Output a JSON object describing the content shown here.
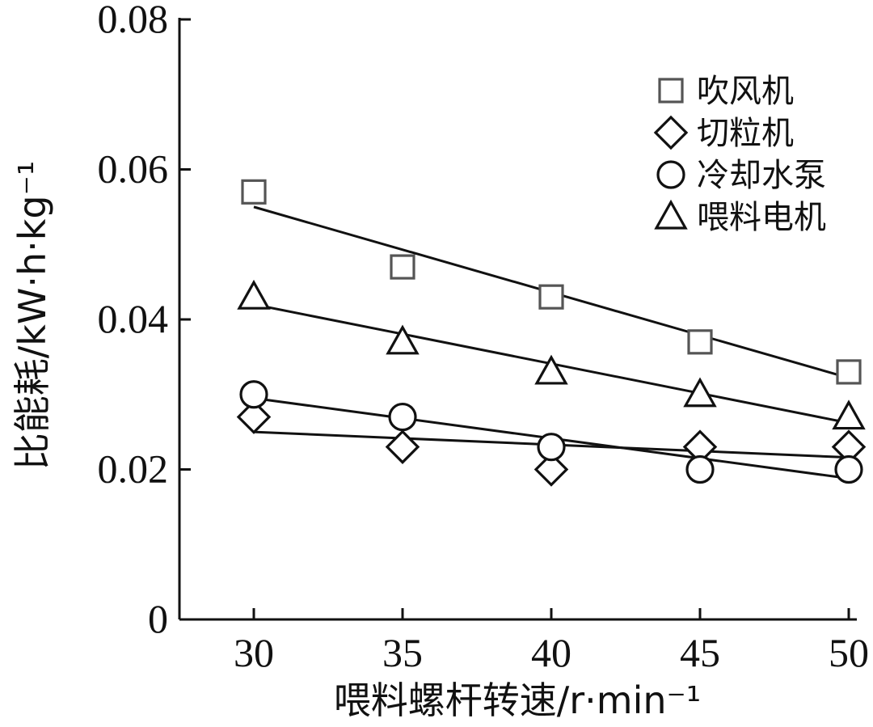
{
  "chart_data": {
    "type": "scatter",
    "xlabel": "喂料螺杆转速/r·min⁻¹",
    "ylabel": "比能耗/kW·h·kg⁻¹",
    "x": [
      30,
      35,
      40,
      45,
      50
    ],
    "xticks": [
      "30",
      "35",
      "40",
      "45",
      "50"
    ],
    "yticks": [
      "0",
      "0.02",
      "0.04",
      "0.06",
      "0.08"
    ],
    "xlim": [
      27.5,
      50
    ],
    "ylim": [
      0,
      0.08
    ],
    "legend_position": "top-right",
    "series": [
      {
        "name": "吹风机",
        "marker": "square",
        "color": "#555555",
        "values": [
          0.057,
          0.047,
          0.043,
          0.037,
          0.033
        ],
        "fit": [
          0.055,
          0.0322
        ]
      },
      {
        "name": "切粒机",
        "marker": "diamond",
        "color": "#111111",
        "values": [
          0.027,
          0.023,
          0.02,
          0.023,
          0.023
        ],
        "fit": [
          0.025,
          0.0216
        ]
      },
      {
        "name": "冷却水泵",
        "marker": "circle",
        "color": "#111111",
        "values": [
          0.03,
          0.027,
          0.023,
          0.02,
          0.02
        ],
        "fit": [
          0.0295,
          0.0188
        ]
      },
      {
        "name": "喂料电机",
        "marker": "triangle",
        "color": "#111111",
        "values": [
          0.043,
          0.037,
          0.033,
          0.03,
          0.027
        ],
        "fit": [
          0.042,
          0.0262
        ]
      }
    ]
  }
}
